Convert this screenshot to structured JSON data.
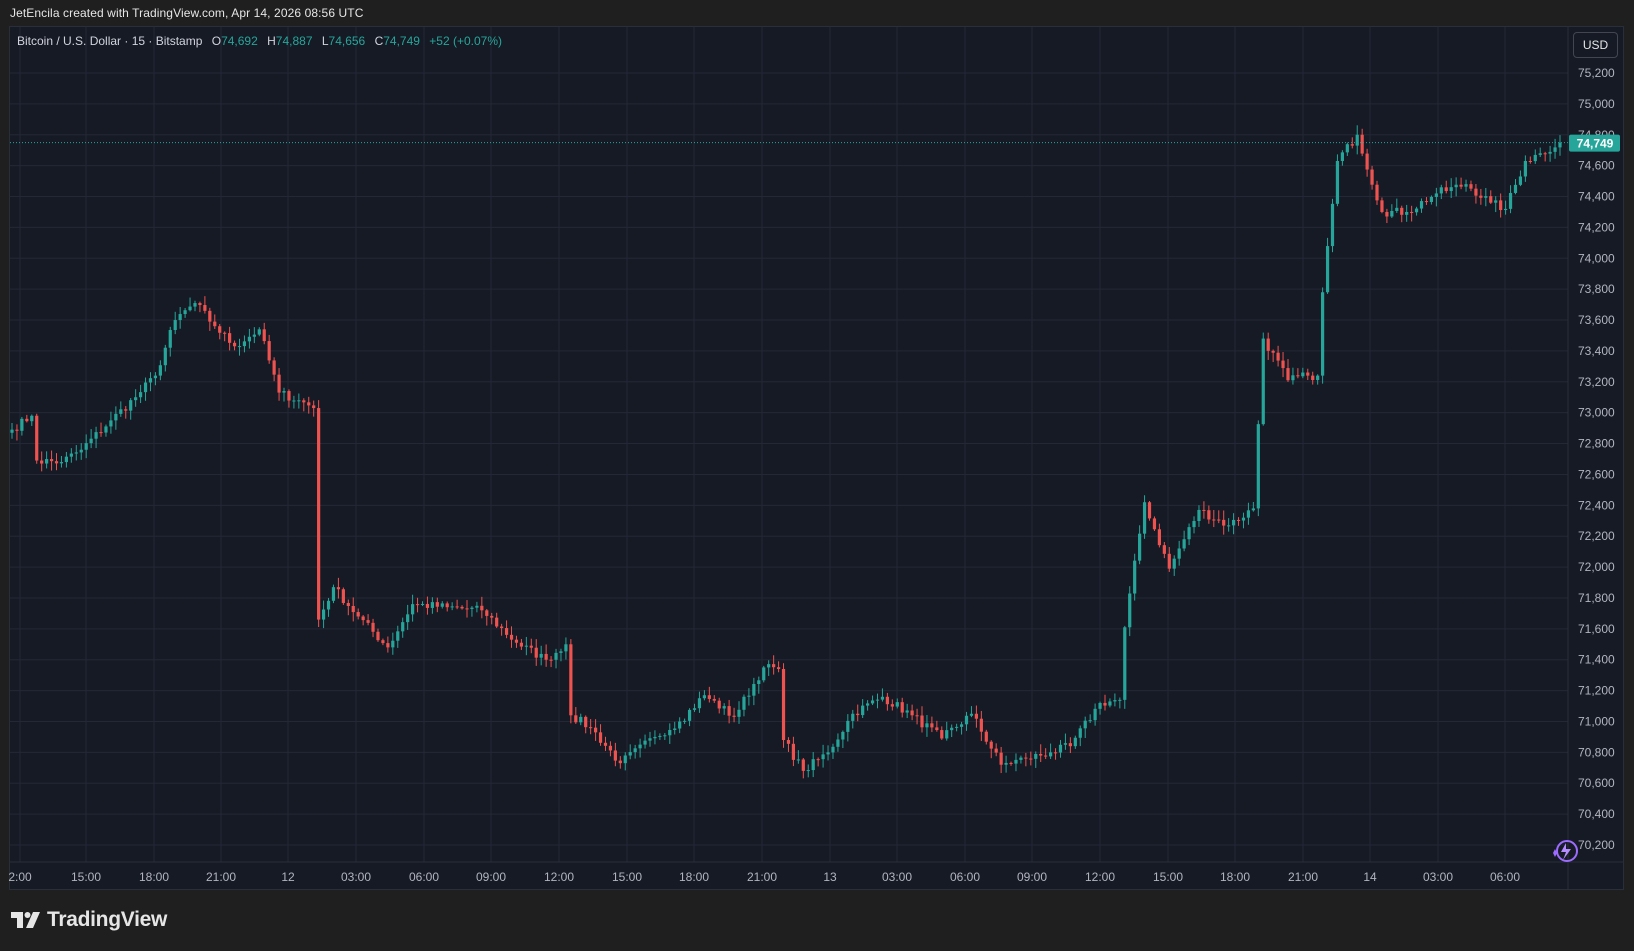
{
  "header": {
    "text": "JetEncila created with TradingView.com, Apr 14, 2026 08:56 UTC"
  },
  "legend": {
    "symbol": "Bitcoin / U.S. Dollar · 15 · Bitstamp",
    "open_label": "O",
    "open": "74,692",
    "high_label": "H",
    "high": "74,887",
    "low_label": "L",
    "low": "74,656",
    "close_label": "C",
    "close": "74,749",
    "change": "+52 (+0.07%)"
  },
  "currency_button": "USD",
  "footer": {
    "brand": "TradingView"
  },
  "colors": {
    "up": "#26a69a",
    "down": "#ef5350",
    "background": "#161a25",
    "grid": "#242836",
    "text": "#d1d4dc"
  },
  "icons": {
    "logo": "tradingview-logo-icon",
    "ai_badge": "lightning-sparkle-icon"
  },
  "chart_data": {
    "type": "candlestick",
    "title": "Bitcoin / U.S. Dollar · 15 · Bitstamp",
    "interval": "15",
    "y_axis": {
      "side": "right",
      "ticks": [
        70200,
        70400,
        70600,
        70800,
        71000,
        71200,
        71400,
        71600,
        71800,
        72000,
        72200,
        72400,
        72600,
        72800,
        73000,
        73200,
        73400,
        73600,
        73800,
        74000,
        74200,
        74400,
        74600,
        74800,
        75000,
        75200
      ],
      "ylim": [
        70080,
        75400
      ]
    },
    "x_axis": {
      "tick_labels": [
        "2:00",
        "15:00",
        "18:00",
        "21:00",
        "12",
        "03:00",
        "06:00",
        "09:00",
        "12:00",
        "15:00",
        "18:00",
        "21:00",
        "13",
        "03:00",
        "06:00",
        "09:00",
        "12:00",
        "15:00",
        "18:00",
        "21:00",
        "14",
        "03:00",
        "06:00"
      ]
    },
    "last_price": "74,749",
    "grid": true,
    "keypoints": [
      {
        "t": 0,
        "c": 72890
      },
      {
        "t": 4,
        "c": 72980
      },
      {
        "t": 5,
        "c": 72690
      },
      {
        "t": 10,
        "c": 72680
      },
      {
        "t": 14,
        "c": 72760
      },
      {
        "t": 20,
        "c": 72950
      },
      {
        "t": 25,
        "c": 73100
      },
      {
        "t": 29,
        "c": 73240
      },
      {
        "t": 33,
        "c": 73600
      },
      {
        "t": 37,
        "c": 73710
      },
      {
        "t": 41,
        "c": 73560
      },
      {
        "t": 45,
        "c": 73430
      },
      {
        "t": 50,
        "c": 73540
      },
      {
        "t": 54,
        "c": 73130
      },
      {
        "t": 58,
        "c": 73080
      },
      {
        "t": 61,
        "c": 73030
      },
      {
        "t": 62,
        "c": 71660
      },
      {
        "t": 65,
        "c": 71870
      },
      {
        "t": 70,
        "c": 71680
      },
      {
        "t": 76,
        "c": 71480
      },
      {
        "t": 81,
        "c": 71760
      },
      {
        "t": 88,
        "c": 71740
      },
      {
        "t": 95,
        "c": 71720
      },
      {
        "t": 102,
        "c": 71510
      },
      {
        "t": 108,
        "c": 71400
      },
      {
        "t": 112,
        "c": 71500
      },
      {
        "t": 113,
        "c": 71040
      },
      {
        "t": 117,
        "c": 70960
      },
      {
        "t": 123,
        "c": 70730
      },
      {
        "t": 130,
        "c": 70900
      },
      {
        "t": 135,
        "c": 71000
      },
      {
        "t": 140,
        "c": 71170
      },
      {
        "t": 146,
        "c": 71030
      },
      {
        "t": 152,
        "c": 71350
      },
      {
        "t": 155,
        "c": 71340
      },
      {
        "t": 156,
        "c": 70880
      },
      {
        "t": 160,
        "c": 70680
      },
      {
        "t": 165,
        "c": 70800
      },
      {
        "t": 170,
        "c": 71050
      },
      {
        "t": 176,
        "c": 71160
      },
      {
        "t": 182,
        "c": 71040
      },
      {
        "t": 188,
        "c": 70890
      },
      {
        "t": 194,
        "c": 71050
      },
      {
        "t": 200,
        "c": 70720
      },
      {
        "t": 205,
        "c": 70760
      },
      {
        "t": 210,
        "c": 70800
      },
      {
        "t": 214,
        "c": 70840
      },
      {
        "t": 220,
        "c": 71120
      },
      {
        "t": 224,
        "c": 71140
      },
      {
        "t": 225,
        "c": 71610
      },
      {
        "t": 229,
        "c": 72420
      },
      {
        "t": 234,
        "c": 71990
      },
      {
        "t": 240,
        "c": 72370
      },
      {
        "t": 246,
        "c": 72270
      },
      {
        "t": 251,
        "c": 72380
      },
      {
        "t": 253,
        "c": 73480
      },
      {
        "t": 258,
        "c": 73210
      },
      {
        "t": 262,
        "c": 73240
      },
      {
        "t": 264,
        "c": 73240
      },
      {
        "t": 265,
        "c": 73780
      },
      {
        "t": 268,
        "c": 74630
      },
      {
        "t": 272,
        "c": 74800
      },
      {
        "t": 277,
        "c": 74300
      },
      {
        "t": 282,
        "c": 74300
      },
      {
        "t": 288,
        "c": 74420
      },
      {
        "t": 294,
        "c": 74480
      },
      {
        "t": 299,
        "c": 74360
      },
      {
        "t": 302,
        "c": 74320
      },
      {
        "t": 306,
        "c": 74630
      },
      {
        "t": 309,
        "c": 74680
      },
      {
        "t": 313,
        "c": 74749
      }
    ]
  }
}
